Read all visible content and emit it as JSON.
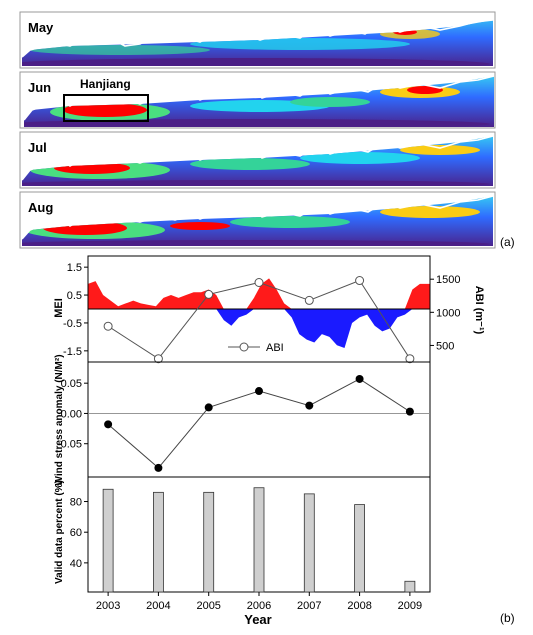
{
  "maps": {
    "months": [
      "May",
      "Jun",
      "Jul",
      "Aug"
    ],
    "region_label": "Hanjiang",
    "panel_tag": "(a)"
  },
  "panel_tag_b": "(b)",
  "chart_data": [
    {
      "type": "area",
      "ylabel": "MEI",
      "yticks": [
        1.5,
        0.5,
        -0.5,
        -1.5
      ],
      "ylim": [
        -1.9,
        1.9
      ],
      "xlim": [
        2002.6,
        2009.4
      ],
      "mei": {
        "x": [
          2002.6,
          2002.75,
          2002.9,
          2003.05,
          2003.2,
          2003.35,
          2003.5,
          2003.65,
          2003.8,
          2003.95,
          2004.1,
          2004.25,
          2004.4,
          2004.55,
          2004.7,
          2004.85,
          2005.0,
          2005.15,
          2005.3,
          2005.45,
          2005.6,
          2005.75,
          2005.9,
          2006.05,
          2006.2,
          2006.35,
          2006.5,
          2006.65,
          2006.8,
          2006.95,
          2007.1,
          2007.25,
          2007.4,
          2007.55,
          2007.7,
          2007.85,
          2008.0,
          2008.15,
          2008.3,
          2008.45,
          2008.6,
          2008.75,
          2008.9,
          2009.05,
          2009.2,
          2009.4
        ],
        "values": [
          0.9,
          1.0,
          0.5,
          0.3,
          0.1,
          0.2,
          0.3,
          0.2,
          0.15,
          0.1,
          0.4,
          0.5,
          0.4,
          0.5,
          0.6,
          0.6,
          0.7,
          0.5,
          -0.4,
          -0.6,
          -0.3,
          -0.2,
          0.4,
          0.9,
          1.1,
          0.7,
          0.2,
          -0.3,
          -0.9,
          -1.1,
          -1.2,
          -0.9,
          -1.0,
          -1.3,
          -1.4,
          -0.5,
          -0.3,
          -0.2,
          -0.6,
          -0.8,
          -0.7,
          -0.3,
          -0.2,
          0.7,
          0.9,
          0.9
        ]
      },
      "abi": {
        "name": "ABI",
        "y2label": "ABI (m⁻¹)",
        "y2ticks": [
          1500,
          1000,
          500
        ],
        "y2lim": [
          250,
          1850
        ],
        "x": [
          2003,
          2004,
          2005,
          2006,
          2007,
          2008,
          2009
        ],
        "values": [
          790,
          300,
          1270,
          1450,
          1180,
          1480,
          300
        ]
      }
    },
    {
      "type": "scatter",
      "ylabel": "Wind stress anomaly (N/M²)",
      "yticks": [
        "0.05",
        "0.00",
        "-0.05"
      ],
      "ytick_values": [
        0.05,
        0.0,
        -0.05
      ],
      "ylim": [
        -0.105,
        0.085
      ],
      "xlim": [
        2002.6,
        2009.4
      ],
      "x": [
        2003,
        2004,
        2005,
        2006,
        2007,
        2008,
        2009
      ],
      "values": [
        -0.018,
        -0.09,
        0.01,
        0.037,
        0.013,
        0.057,
        0.003
      ]
    },
    {
      "type": "bar",
      "ylabel": "Valid data percent (%)",
      "yticks": [
        80,
        60,
        40
      ],
      "ylim": [
        21,
        96
      ],
      "xlim": [
        2002.6,
        2009.4
      ],
      "categories": [
        "2003",
        "2004",
        "2005",
        "2006",
        "2007",
        "2008",
        "2009"
      ],
      "values": [
        88,
        86,
        86,
        89,
        85,
        78,
        28
      ],
      "xlabel": "Year"
    }
  ],
  "colors": {
    "positive": "#ff1a1a",
    "negative": "#1a1aff",
    "ocean_deep": "#4b1f86",
    "ocean_mid": "#2466ff",
    "ocean_light": "#22d3ee",
    "bloom_green": "#4ade80",
    "bloom_red": "#ff0000"
  }
}
